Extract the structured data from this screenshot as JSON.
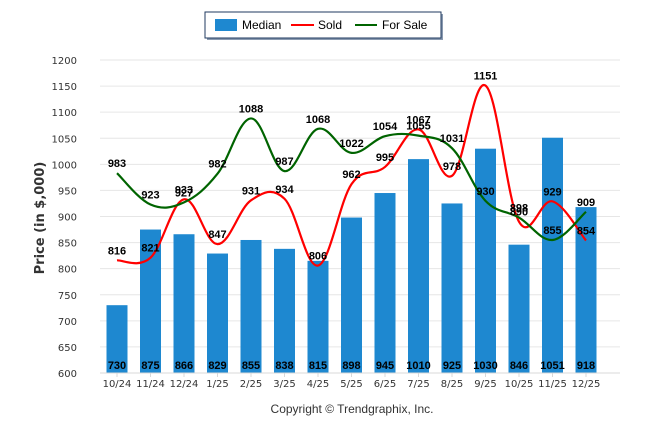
{
  "chart_data": {
    "type": "bar",
    "title": "",
    "xlabel": "",
    "ylabel": "Price (in $,000)",
    "ylim": [
      600,
      1200
    ],
    "yticks": [
      600,
      650,
      700,
      750,
      800,
      850,
      900,
      950,
      1000,
      1050,
      1100,
      1150,
      1200
    ],
    "grid": true,
    "legend_position": "top-center",
    "categories": [
      "10/24",
      "11/24",
      "12/24",
      "1/25",
      "2/25",
      "3/25",
      "4/25",
      "5/25",
      "6/25",
      "7/25",
      "8/25",
      "9/25",
      "10/25",
      "11/25",
      "12/25"
    ],
    "series": [
      {
        "name": "Median",
        "type": "bar",
        "color": "#1E88D0",
        "values": [
          730,
          875,
          866,
          829,
          855,
          838,
          815,
          898,
          945,
          1010,
          925,
          1030,
          846,
          1051,
          918
        ]
      },
      {
        "name": "Sold",
        "type": "line",
        "color": "#FF0000",
        "values": [
          816,
          821,
          933,
          847,
          931,
          934,
          806,
          962,
          995,
          1067,
          978,
          1151,
          890,
          929,
          854
        ]
      },
      {
        "name": "For Sale",
        "type": "line",
        "color": "#006400",
        "values": [
          983,
          923,
          927,
          982,
          1088,
          987,
          1068,
          1022,
          1054,
          1055,
          1031,
          930,
          898,
          855,
          909
        ]
      }
    ],
    "footer": "Copyright © Trendgraphix, Inc."
  }
}
